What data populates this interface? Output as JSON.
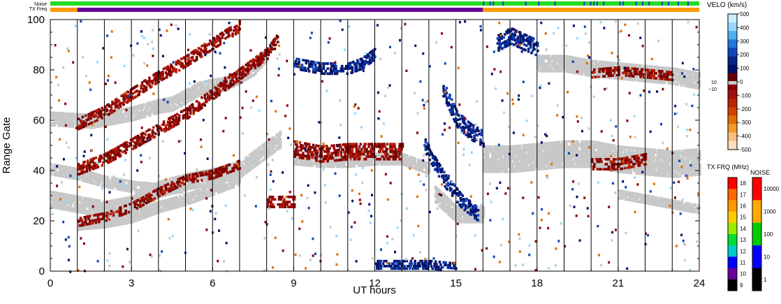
{
  "chart_data": {
    "type": "heatmap",
    "xlabel": "UT hours",
    "ylabel": "Range Gate",
    "xlim": [
      0,
      24
    ],
    "ylim": [
      0,
      100
    ],
    "xticks": [
      0,
      3,
      6,
      9,
      12,
      15,
      18,
      21,
      24
    ],
    "yticks": [
      0,
      20,
      40,
      60,
      80,
      100
    ],
    "grid": "vertical lines every hour",
    "top_bars": {
      "noise_label": "Noise",
      "txfreq_label": "TX Freq",
      "noise_color": "#22dd22",
      "txfreq_segments": [
        {
          "from": 0,
          "to": 1,
          "color": "#ff9900"
        },
        {
          "from": 1,
          "to": 16,
          "color": "#660099"
        },
        {
          "from": 16,
          "to": 24,
          "color": "#ff9900"
        }
      ]
    },
    "velocity_colorbar": {
      "title": "VELO (km/s)",
      "ticks": [
        500,
        400,
        300,
        200,
        100,
        0,
        -100,
        -200,
        -300,
        -400,
        -500
      ],
      "ground_scatter_labels": [
        "10",
        "−10"
      ],
      "colors": [
        "#ccecff",
        "#99d6ff",
        "#4fb0f0",
        "#2277dd",
        "#1144bb",
        "#0a2288",
        "#001166",
        "#660000",
        "#8b0000",
        "#a31010",
        "#bb2200",
        "#cc4400",
        "#e07000",
        "#f59a30",
        "#f8c080",
        "#fbe0c0"
      ]
    },
    "txfreq_colorbar": {
      "title": "TX FRQ (MHz)",
      "ticks": [
        "18",
        "17",
        "16",
        "15",
        "14",
        "13",
        "12",
        "11",
        "10",
        "9"
      ],
      "colors": [
        "#ff0000",
        "#ff6600",
        "#ff9900",
        "#ffcc00",
        "#99ee00",
        "#00dd33",
        "#00cccc",
        "#0000ff",
        "#660099",
        "#000000"
      ]
    },
    "noise_colorbar": {
      "title": "NOISE",
      "ticks": [
        "10000",
        "1000",
        "100",
        "10",
        "1"
      ],
      "colors": [
        "#ff0000",
        "#ffaa00",
        "#00cc00",
        "#0000ff",
        "#000000"
      ]
    },
    "ground_scatter_color": "#c8c8c8",
    "bands": [
      {
        "kind": "ground",
        "pts": [
          [
            0,
            60
          ],
          [
            1.5,
            59
          ],
          [
            3,
            62
          ],
          [
            4,
            65
          ],
          [
            4.5,
            66
          ],
          [
            5.5,
            72
          ],
          [
            6.5,
            74
          ],
          [
            7.5,
            80
          ],
          [
            8,
            86
          ]
        ],
        "half": 2.5
      },
      {
        "kind": "ground",
        "pts": [
          [
            0,
            28
          ],
          [
            1,
            26
          ],
          [
            2,
            24
          ],
          [
            3,
            26
          ],
          [
            4,
            32
          ],
          [
            5,
            35
          ],
          [
            6,
            37
          ],
          [
            7,
            40
          ],
          [
            8,
            48
          ],
          [
            8.5,
            52
          ]
        ],
        "half": 3
      },
      {
        "kind": "ground",
        "pts": [
          [
            0,
            40
          ],
          [
            1,
            38
          ],
          [
            2,
            35
          ],
          [
            3,
            33
          ],
          [
            4,
            32
          ],
          [
            5,
            33
          ]
        ],
        "half": 2
      },
      {
        "kind": "ground",
        "pts": [
          [
            1,
            18
          ],
          [
            2,
            19
          ],
          [
            3,
            21
          ],
          [
            4,
            25
          ],
          [
            5,
            28
          ],
          [
            6,
            32
          ],
          [
            7,
            36
          ]
        ],
        "half": 2
      },
      {
        "kind": "ground",
        "pts": [
          [
            9,
            44
          ],
          [
            10,
            43
          ],
          [
            11,
            43
          ],
          [
            12,
            44
          ],
          [
            13,
            44
          ],
          [
            14,
            40
          ]
        ],
        "half": 2
      },
      {
        "kind": "ground",
        "pts": [
          [
            14.2,
            30
          ],
          [
            15,
            22
          ],
          [
            16,
            22
          ]
        ],
        "half": 3
      },
      {
        "kind": "ground",
        "pts": [
          [
            16,
            44
          ],
          [
            17,
            44
          ],
          [
            18,
            45
          ],
          [
            19,
            46
          ],
          [
            20,
            46
          ],
          [
            21,
            44
          ],
          [
            22,
            43
          ],
          [
            23,
            42
          ],
          [
            24,
            43
          ]
        ],
        "half": 5
      },
      {
        "kind": "ground",
        "pts": [
          [
            18,
            82
          ],
          [
            19,
            82
          ],
          [
            20,
            80
          ],
          [
            21,
            79
          ],
          [
            22,
            78
          ],
          [
            23,
            77
          ],
          [
            24,
            75
          ]
        ],
        "half": 3
      },
      {
        "kind": "ground",
        "pts": [
          [
            21,
            30
          ],
          [
            22,
            28
          ],
          [
            23,
            26
          ],
          [
            24,
            24
          ]
        ],
        "half": 1.5
      },
      {
        "kind": "neg",
        "pts": [
          [
            1,
            19
          ],
          [
            2,
            21
          ],
          [
            3,
            25
          ],
          [
            4,
            31
          ],
          [
            5,
            36
          ],
          [
            6,
            38
          ],
          [
            7,
            42
          ]
        ],
        "half": 1.5
      },
      {
        "kind": "neg",
        "pts": [
          [
            1,
            40
          ],
          [
            2,
            44
          ],
          [
            3,
            50
          ],
          [
            4,
            56
          ],
          [
            5,
            62
          ],
          [
            6,
            70
          ],
          [
            7,
            78
          ],
          [
            8,
            86
          ],
          [
            8.4,
            92
          ]
        ],
        "half": 2
      },
      {
        "kind": "neg",
        "pts": [
          [
            1,
            58
          ],
          [
            2,
            63
          ],
          [
            3,
            70
          ],
          [
            4,
            77
          ],
          [
            5,
            83
          ],
          [
            6,
            90
          ],
          [
            7,
            97
          ]
        ],
        "half": 2
      },
      {
        "kind": "neg",
        "pts": [
          [
            9,
            48
          ],
          [
            10,
            46
          ],
          [
            11,
            47
          ],
          [
            12,
            47
          ],
          [
            13,
            47
          ]
        ],
        "half": 3
      },
      {
        "kind": "neg",
        "pts": [
          [
            8,
            27
          ],
          [
            9,
            27
          ]
        ],
        "half": 2
      },
      {
        "kind": "neg",
        "pts": [
          [
            20,
            42
          ],
          [
            21,
            42
          ],
          [
            22,
            44
          ]
        ],
        "half": 2
      },
      {
        "kind": "neg",
        "pts": [
          [
            20,
            78
          ],
          [
            21,
            79
          ],
          [
            22,
            78
          ],
          [
            23,
            77
          ]
        ],
        "half": 1.5
      },
      {
        "kind": "pos",
        "pts": [
          [
            13.8,
            50
          ],
          [
            14.2,
            42
          ],
          [
            14.6,
            35
          ],
          [
            15.2,
            27
          ],
          [
            15.8,
            22
          ]
        ],
        "half": 2.5
      },
      {
        "kind": "pos",
        "pts": [
          [
            14.5,
            72
          ],
          [
            15,
            60
          ],
          [
            15.5,
            55
          ],
          [
            16,
            52
          ]
        ],
        "half": 3
      },
      {
        "kind": "pos",
        "pts": [
          [
            9,
            82
          ],
          [
            10,
            80
          ],
          [
            11,
            80
          ],
          [
            11.5,
            82
          ],
          [
            12,
            86
          ]
        ],
        "half": 2
      },
      {
        "kind": "pos",
        "pts": [
          [
            12,
            2
          ],
          [
            13,
            2
          ],
          [
            14,
            2
          ],
          [
            15,
            1
          ]
        ],
        "half": 1.5
      },
      {
        "kind": "pos",
        "pts": [
          [
            16.5,
            90
          ],
          [
            17,
            93
          ],
          [
            18,
            88
          ]
        ],
        "half": 3
      }
    ]
  }
}
